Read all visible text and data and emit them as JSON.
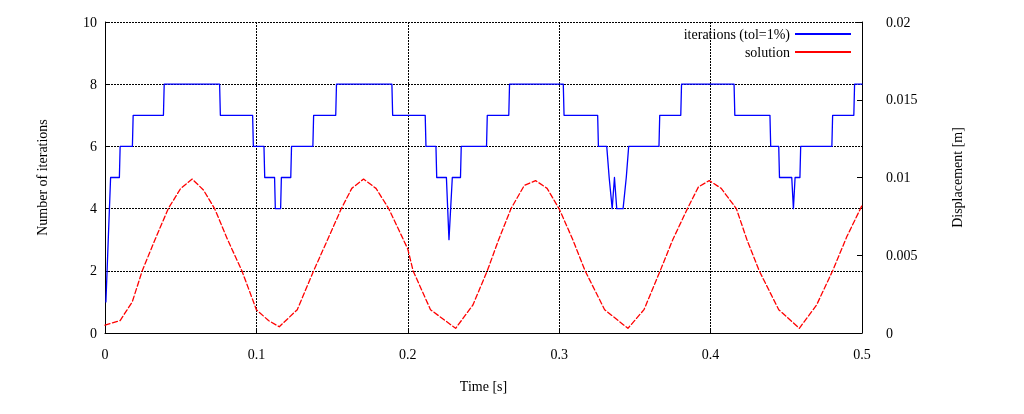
{
  "chart_data": {
    "type": "line",
    "xlabel": "Time [s]",
    "ylabel": "Number of iterations",
    "y2label": "Displacement [m]",
    "xlim": [
      0,
      0.5
    ],
    "xticks": [
      0,
      0.1,
      0.2,
      0.3,
      0.4,
      0.5
    ],
    "ylim": [
      0,
      10
    ],
    "yticks": [
      0,
      2,
      4,
      6,
      8,
      10
    ],
    "y2lim": [
      0,
      0.02
    ],
    "y2ticks": [
      0,
      0.005,
      0.01,
      0.015,
      0.02
    ],
    "grid": true,
    "legend": "top right",
    "marker": "none",
    "series": [
      {
        "name": "iterations (tol=1%)",
        "color": "#0000ff",
        "line_style": "solid",
        "x": [
          0.0006,
          0.0037,
          0.0095,
          0.01,
          0.0181,
          0.0186,
          0.0386,
          0.0391,
          0.0757,
          0.0762,
          0.0975,
          0.098,
          0.105,
          0.1055,
          0.112,
          0.1125,
          0.116,
          0.1165,
          0.1227,
          0.1232,
          0.1373,
          0.1378,
          0.1524,
          0.1529,
          0.1895,
          0.19,
          0.2115,
          0.212,
          0.2186,
          0.2191,
          0.2255,
          0.2272,
          0.2294,
          0.2348,
          0.2353,
          0.252,
          0.2525,
          0.2667,
          0.2672,
          0.3027,
          0.3032,
          0.3254,
          0.3259,
          0.3314,
          0.333,
          0.335,
          0.3365,
          0.338,
          0.3422,
          0.3443,
          0.3459,
          0.3659,
          0.3664,
          0.3803,
          0.3808,
          0.4155,
          0.416,
          0.4392,
          0.4397,
          0.445,
          0.4455,
          0.4536,
          0.4547,
          0.4558,
          0.459,
          0.4595,
          0.4801,
          0.4806,
          0.4946,
          0.4951,
          0.5
        ],
        "values": [
          1,
          5,
          5,
          6,
          6,
          7,
          7,
          8,
          8,
          7,
          7,
          6,
          6,
          5,
          5,
          4,
          4,
          5,
          5,
          6,
          6,
          7,
          7,
          8,
          8,
          7,
          7,
          6,
          6,
          5,
          5,
          3,
          5,
          5,
          6,
          6,
          7,
          7,
          8,
          8,
          7,
          7,
          6,
          6,
          5,
          4,
          5,
          4,
          4,
          5,
          6,
          6,
          7,
          7,
          8,
          8,
          7,
          7,
          6,
          6,
          5,
          5,
          4,
          5,
          5,
          6,
          6,
          7,
          7,
          8,
          8
        ]
      },
      {
        "name": "solution",
        "color": "#ff0000",
        "line_style": "dashed",
        "axis": "y2",
        "x": [
          0,
          0.01,
          0.018,
          0.0246,
          0.033,
          0.0418,
          0.05,
          0.0576,
          0.065,
          0.0724,
          0.081,
          0.0904,
          0.1,
          0.108,
          0.1151,
          0.127,
          0.1378,
          0.147,
          0.1561,
          0.163,
          0.1708,
          0.179,
          0.1874,
          0.2,
          0.2035,
          0.215,
          0.2316,
          0.243,
          0.2525,
          0.26,
          0.2682,
          0.277,
          0.2844,
          0.292,
          0.2999,
          0.309,
          0.3171,
          0.33,
          0.3454,
          0.356,
          0.3667,
          0.375,
          0.3847,
          0.392,
          0.3991,
          0.407,
          0.417,
          0.424,
          0.4321,
          0.445,
          0.4586,
          0.47,
          0.4806,
          0.49,
          0.5
        ],
        "values": [
          0.0005,
          0.0008,
          0.002,
          0.004,
          0.006,
          0.008,
          0.0093,
          0.0099,
          0.0092,
          0.008,
          0.006,
          0.004,
          0.0015,
          0.0008,
          0.0004,
          0.0015,
          0.004,
          0.006,
          0.008,
          0.0093,
          0.0099,
          0.0093,
          0.008,
          0.0054,
          0.004,
          0.0015,
          0.0003,
          0.0018,
          0.004,
          0.006,
          0.008,
          0.0095,
          0.0098,
          0.0093,
          0.008,
          0.006,
          0.004,
          0.0015,
          0.0003,
          0.0015,
          0.004,
          0.006,
          0.008,
          0.0094,
          0.0098,
          0.0093,
          0.008,
          0.006,
          0.004,
          0.0015,
          0.0003,
          0.0018,
          0.004,
          0.0062,
          0.0082
        ]
      }
    ]
  }
}
